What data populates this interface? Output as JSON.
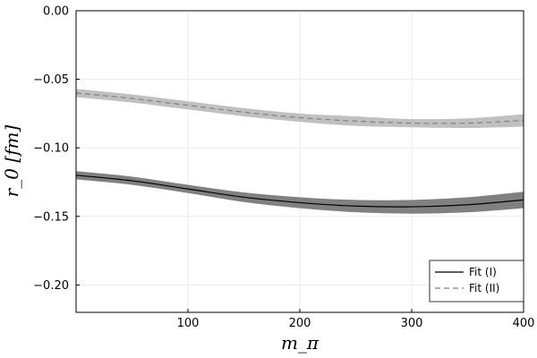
{
  "chart_data": {
    "type": "line",
    "xlabel": "m_π",
    "ylabel": "r_0 [fm]",
    "xlim": [
      0,
      400
    ],
    "ylim": [
      -0.22,
      0.0
    ],
    "xticks": [
      100,
      200,
      300,
      400
    ],
    "yticks": [
      0.0,
      -0.05,
      -0.1,
      -0.15,
      -0.2
    ],
    "ytick_labels": [
      "0.00",
      "−0.05",
      "−0.10",
      "−0.15",
      "−0.20"
    ],
    "grid": true,
    "legend_position": "bottom-right",
    "series": [
      {
        "name": "Fit (I)",
        "style": "solid",
        "line_color": "#000000",
        "band_color": "#808080",
        "x": [
          0,
          50,
          100,
          150,
          200,
          250,
          300,
          350,
          400
        ],
        "y": [
          -0.12,
          -0.124,
          -0.13,
          -0.136,
          -0.14,
          -0.1425,
          -0.143,
          -0.1415,
          -0.138
        ],
        "band_lower": [
          -0.123,
          -0.127,
          -0.133,
          -0.1395,
          -0.144,
          -0.147,
          -0.148,
          -0.147,
          -0.144
        ],
        "band_upper": [
          -0.117,
          -0.121,
          -0.127,
          -0.1325,
          -0.136,
          -0.138,
          -0.138,
          -0.136,
          -0.132
        ]
      },
      {
        "name": "Fit (II)",
        "style": "dashed",
        "line_color": "#808080",
        "band_color": "#c0c0c0",
        "x": [
          0,
          50,
          100,
          150,
          200,
          250,
          300,
          350,
          400
        ],
        "y": [
          -0.06,
          -0.064,
          -0.069,
          -0.074,
          -0.078,
          -0.0805,
          -0.082,
          -0.082,
          -0.08
        ],
        "band_lower": [
          -0.063,
          -0.067,
          -0.072,
          -0.077,
          -0.081,
          -0.084,
          -0.085,
          -0.0855,
          -0.0845
        ],
        "band_upper": [
          -0.057,
          -0.061,
          -0.066,
          -0.071,
          -0.075,
          -0.077,
          -0.079,
          -0.0785,
          -0.0755
        ]
      }
    ]
  }
}
